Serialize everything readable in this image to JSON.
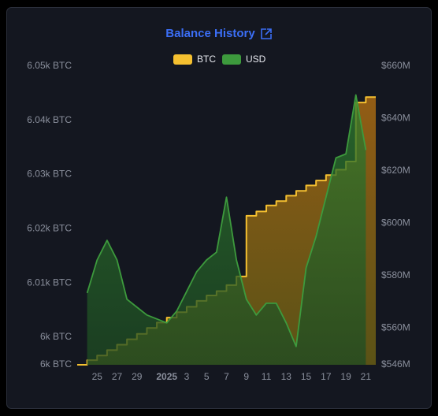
{
  "chart_data": {
    "type": "line",
    "title": "Balance History",
    "x": [
      "2024-12-24",
      "2024-12-25",
      "2024-12-26",
      "2024-12-27",
      "2024-12-28",
      "2024-12-29",
      "2024-12-30",
      "2024-12-31",
      "2025-01-01",
      "2025-01-02",
      "2025-01-03",
      "2025-01-04",
      "2025-01-05",
      "2025-01-06",
      "2025-01-07",
      "2025-01-08",
      "2025-01-09",
      "2025-01-10",
      "2025-01-11",
      "2025-01-12",
      "2025-01-13",
      "2025-01-14",
      "2025-01-15",
      "2025-01-16",
      "2025-01-17",
      "2025-01-18",
      "2025-01-19",
      "2025-01-20",
      "2025-01-21"
    ],
    "series": [
      {
        "name": "BTC",
        "color": "#f5c030",
        "step": "after",
        "values": [
          5995.75,
          5996.6,
          5997.6,
          5998.6,
          5999.6,
          6000.6,
          6001.7,
          6002.7,
          6003.6,
          6004.6,
          6005.6,
          6006.7,
          6007.7,
          6008.5,
          6009.6,
          6011.2,
          6022.4,
          6023.2,
          6024.3,
          6025.1,
          6026.1,
          6027.0,
          6028.0,
          6028.9,
          6029.9,
          6030.9,
          6032.4,
          6043.3,
          6044.3
        ]
      },
      {
        "name": "USD",
        "color": "#3d9a3d",
        "axis": "y2",
        "values": [
          573.4,
          586,
          593.5,
          586,
          571,
          568,
          565,
          563.5,
          562,
          566.5,
          574,
          581.5,
          586,
          589,
          610,
          586,
          571,
          565,
          569.5,
          569.5,
          562,
          553,
          583,
          595,
          610,
          625,
          626.5,
          649,
          628
        ]
      }
    ],
    "xlim": [
      "2024-12-23",
      "2025-01-22"
    ],
    "xticks": [
      {
        "value": "2024-12-25",
        "label": "25"
      },
      {
        "value": "2024-12-27",
        "label": "27"
      },
      {
        "value": "2024-12-29",
        "label": "29"
      },
      {
        "value": "2025-01-01",
        "label": "2025"
      },
      {
        "value": "2025-01-03",
        "label": "3"
      },
      {
        "value": "2025-01-05",
        "label": "5"
      },
      {
        "value": "2025-01-07",
        "label": "7"
      },
      {
        "value": "2025-01-09",
        "label": "9"
      },
      {
        "value": "2025-01-11",
        "label": "11"
      },
      {
        "value": "2025-01-13",
        "label": "13"
      },
      {
        "value": "2025-01-15",
        "label": "15"
      },
      {
        "value": "2025-01-17",
        "label": "17"
      },
      {
        "value": "2025-01-19",
        "label": "19"
      },
      {
        "value": "2025-01-21",
        "label": "21"
      }
    ],
    "ylim": [
      5994.9,
      6050
    ],
    "yticks": [
      {
        "value": 5994.9,
        "label": "6k BTC"
      },
      {
        "value": 6000,
        "label": "6k BTC"
      },
      {
        "value": 6010,
        "label": "6.01k BTC"
      },
      {
        "value": 6020,
        "label": "6.02k BTC"
      },
      {
        "value": 6030,
        "label": "6.03k BTC"
      },
      {
        "value": 6040,
        "label": "6.04k BTC"
      },
      {
        "value": 6050,
        "label": "6.05k BTC"
      }
    ],
    "y2lim": [
      546,
      660
    ],
    "y2ticks": [
      {
        "value": 546,
        "label": "$546M"
      },
      {
        "value": 560,
        "label": "$560M"
      },
      {
        "value": 580,
        "label": "$580M"
      },
      {
        "value": 600,
        "label": "$600M"
      },
      {
        "value": 620,
        "label": "$620M"
      },
      {
        "value": 640,
        "label": "$640M"
      },
      {
        "value": 660,
        "label": "$660M"
      }
    ]
  }
}
